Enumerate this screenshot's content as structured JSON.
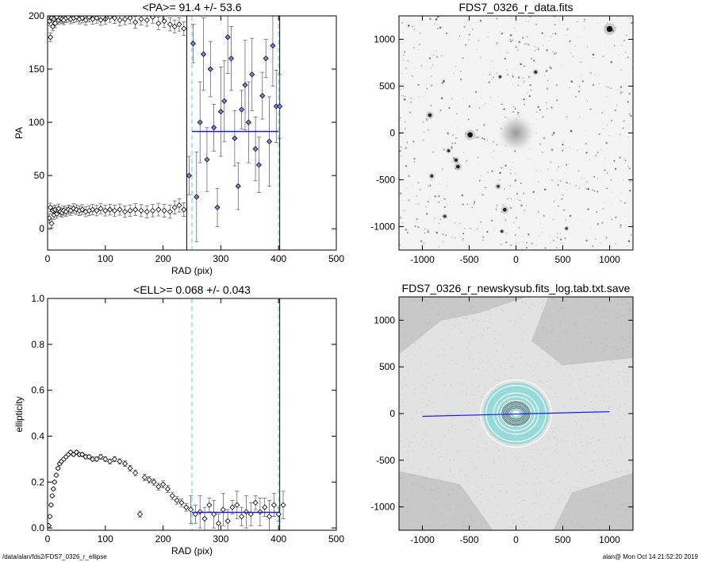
{
  "footer": {
    "left": "/data/alan/fds2/FDS7_0326_r_ellipse",
    "right": "alan@  Mon Oct 14 21:52:20 2019"
  },
  "colors": {
    "axis": "#000000",
    "points": "#000000",
    "fit_line": "#1a1aff",
    "dashed_marker": "#66dddd",
    "filled_points": "#8080ff",
    "image_bg": "#c8c8c8",
    "contour": "#ffffff",
    "cyan_ring": "#7fd7d7"
  },
  "chart_data": [
    {
      "type": "scatter",
      "title": "<PA>=  91.4 +/-  53.6",
      "xlabel": "RAD (pix)",
      "ylabel": "PA",
      "xlim": [
        0,
        500
      ],
      "ylim": [
        -20,
        200
      ],
      "xticks": [
        "0",
        "100",
        "200",
        "300",
        "400",
        "500"
      ],
      "yticks": [
        "0",
        "50",
        "100",
        "150",
        "200"
      ],
      "xtick_values": [
        0,
        100,
        200,
        300,
        400,
        500
      ],
      "ytick_values": [
        0,
        50,
        100,
        150,
        200
      ],
      "mean_line": {
        "x": [
          250,
          400
        ],
        "y": 91.4
      },
      "dashed_vlines": [
        250,
        400
      ],
      "solid_vlines": [
        241,
        402
      ],
      "series": [
        {
          "x": [
            3,
            5,
            7,
            9,
            11,
            13,
            16,
            19,
            22,
            25,
            28,
            32,
            36,
            40,
            45,
            50,
            55,
            60,
            66,
            72,
            78,
            85,
            92,
            100,
            108,
            116,
            125,
            134,
            143,
            152,
            162,
            172,
            182,
            192,
            202,
            212,
            220,
            228,
            236
          ],
          "y": [
            10,
            20,
            5,
            17,
            13,
            18,
            14,
            19,
            16,
            15,
            17,
            16,
            18,
            17,
            19,
            18,
            17,
            18,
            16,
            17,
            18,
            17,
            19,
            17,
            18,
            17,
            18,
            16,
            17,
            18,
            17,
            16,
            17,
            18,
            17,
            16,
            20,
            22,
            18
          ]
        },
        {
          "x": [
            3,
            5,
            7,
            9,
            11,
            13,
            16,
            19,
            22,
            25,
            28,
            32,
            36,
            40,
            45,
            50,
            55,
            60,
            66,
            72,
            78,
            85,
            92,
            100,
            108,
            116,
            125,
            134,
            143,
            152,
            162,
            172,
            182,
            192,
            202,
            212,
            220,
            228,
            236
          ],
          "y": [
            195,
            180,
            198,
            190,
            197,
            193,
            199,
            196,
            198,
            197,
            196,
            198,
            199,
            197,
            198,
            199,
            197,
            198,
            196,
            199,
            197,
            198,
            196,
            197,
            199,
            198,
            196,
            197,
            198,
            194,
            197,
            196,
            199,
            193,
            195,
            192,
            190,
            192,
            188
          ]
        },
        {
          "x": [
            245,
            252,
            258,
            264,
            270,
            276,
            282,
            288,
            294,
            300,
            306,
            312,
            318,
            324,
            330,
            336,
            342,
            348,
            354,
            360,
            366,
            372,
            378,
            384,
            390,
            396,
            402
          ],
          "y": [
            50,
            174,
            30,
            100,
            164,
            65,
            150,
            95,
            20,
            110,
            120,
            180,
            160,
            85,
            40,
            112,
            135,
            100,
            145,
            75,
            60,
            125,
            160,
            82,
            172,
            115,
            115
          ]
        }
      ]
    },
    {
      "type": "image",
      "title": "FDS7_0326_r_data.fits",
      "xlim": [
        -1250,
        1250
      ],
      "ylim": [
        -1250,
        1250
      ],
      "xticks": [
        "-1000",
        "-500",
        "0",
        "500",
        "1000"
      ],
      "yticks": [
        "-1000",
        "-500",
        "0",
        "500",
        "1000"
      ],
      "tick_values": [
        -1000,
        -500,
        0,
        500,
        1000
      ],
      "sources": [
        {
          "x": 0,
          "y": 0,
          "r": 150,
          "flux": 0.7
        },
        {
          "x": -490,
          "y": -20,
          "r": 35,
          "flux": 1.0
        },
        {
          "x": 1000,
          "y": 1110,
          "r": 40,
          "flux": 1.0
        },
        {
          "x": -920,
          "y": 190,
          "r": 25,
          "flux": 0.9
        },
        {
          "x": -720,
          "y": -190,
          "r": 18,
          "flux": 0.9
        },
        {
          "x": -640,
          "y": -290,
          "r": 22,
          "flux": 0.9
        },
        {
          "x": -620,
          "y": -360,
          "r": 25,
          "flux": 0.9
        },
        {
          "x": -900,
          "y": -460,
          "r": 20,
          "flux": 0.9
        },
        {
          "x": -760,
          "y": -890,
          "r": 18,
          "flux": 0.8
        },
        {
          "x": -120,
          "y": -820,
          "r": 25,
          "flux": 0.9
        },
        {
          "x": 210,
          "y": 650,
          "r": 20,
          "flux": 0.9
        },
        {
          "x": -190,
          "y": -570,
          "r": 20,
          "flux": 0.8
        },
        {
          "x": -150,
          "y": -1050,
          "r": 15,
          "flux": 0.8
        },
        {
          "x": -170,
          "y": 600,
          "r": 15,
          "flux": 0.7
        },
        {
          "x": 540,
          "y": -1020,
          "r": 15,
          "flux": 0.7
        }
      ]
    },
    {
      "type": "scatter",
      "title": "<ELL>= 0.068 +/-  0.043",
      "xlabel": "RAD (pix)",
      "ylabel": "ellipticity",
      "xlim": [
        0,
        500
      ],
      "ylim": [
        -0.01,
        1.0
      ],
      "xticks": [
        "0",
        "100",
        "200",
        "300",
        "400",
        "500"
      ],
      "yticks": [
        "0.0",
        "0.2",
        "0.4",
        "0.6",
        "0.8",
        "1.0"
      ],
      "xtick_values": [
        0,
        100,
        200,
        300,
        400,
        500
      ],
      "ytick_values": [
        0,
        0.2,
        0.4,
        0.6,
        0.8,
        1.0
      ],
      "mean_line": {
        "x": [
          250,
          400
        ],
        "y": 0.068
      },
      "dashed_vlines": [
        250,
        400
      ],
      "solid_vlines": [
        402
      ],
      "series": [
        {
          "x": [
            2,
            4,
            6,
            8,
            10,
            12,
            15,
            18,
            21,
            24,
            28,
            32,
            36,
            40,
            45,
            50,
            55,
            60,
            66,
            72,
            78,
            85,
            92,
            100,
            108,
            116,
            125,
            134,
            143,
            152,
            160,
            168,
            176,
            184,
            192,
            200,
            208,
            216,
            224,
            232,
            240,
            248,
            256,
            264,
            272,
            280,
            288,
            296,
            304,
            312,
            320,
            328,
            336,
            344,
            352,
            360,
            368,
            376,
            384,
            392,
            400,
            408
          ],
          "y": [
            0.01,
            0.05,
            0.1,
            0.14,
            0.17,
            0.2,
            0.23,
            0.26,
            0.28,
            0.29,
            0.3,
            0.31,
            0.32,
            0.33,
            0.32,
            0.33,
            0.32,
            0.32,
            0.31,
            0.31,
            0.3,
            0.3,
            0.31,
            0.3,
            0.29,
            0.3,
            0.29,
            0.28,
            0.26,
            0.24,
            0.06,
            0.22,
            0.21,
            0.2,
            0.18,
            0.19,
            0.17,
            0.14,
            0.12,
            0.11,
            0.09,
            0.08,
            0.06,
            0.07,
            0.04,
            0.1,
            0.06,
            0.02,
            0.08,
            0.03,
            0.09,
            0.1,
            0.05,
            0.07,
            0.06,
            0.11,
            0.07,
            0.09,
            0.05,
            0.1,
            0.06,
            0.1
          ]
        }
      ]
    },
    {
      "type": "image",
      "title": "FDS7_0326_r_newskysub.fits_log.tab.txt.save",
      "xlim": [
        -1250,
        1250
      ],
      "ylim": [
        -1250,
        1250
      ],
      "xticks": [
        "-1000",
        "-500",
        "0",
        "500",
        "1000"
      ],
      "yticks": [
        "-1000",
        "-500",
        "0",
        "500",
        "1000"
      ],
      "tick_values": [
        -1000,
        -500,
        0,
        500,
        1000
      ],
      "fit_line": {
        "x": [
          -1000,
          1000
        ],
        "y": [
          -30,
          20
        ]
      },
      "contours": [
        {
          "a": 380,
          "b": 360
        },
        {
          "a": 320,
          "b": 300
        },
        {
          "a": 240,
          "b": 220
        },
        {
          "a": 200,
          "b": 180
        },
        {
          "a": 160,
          "b": 140
        },
        {
          "a": 120,
          "b": 100
        },
        {
          "a": 80,
          "b": 60
        }
      ]
    }
  ]
}
